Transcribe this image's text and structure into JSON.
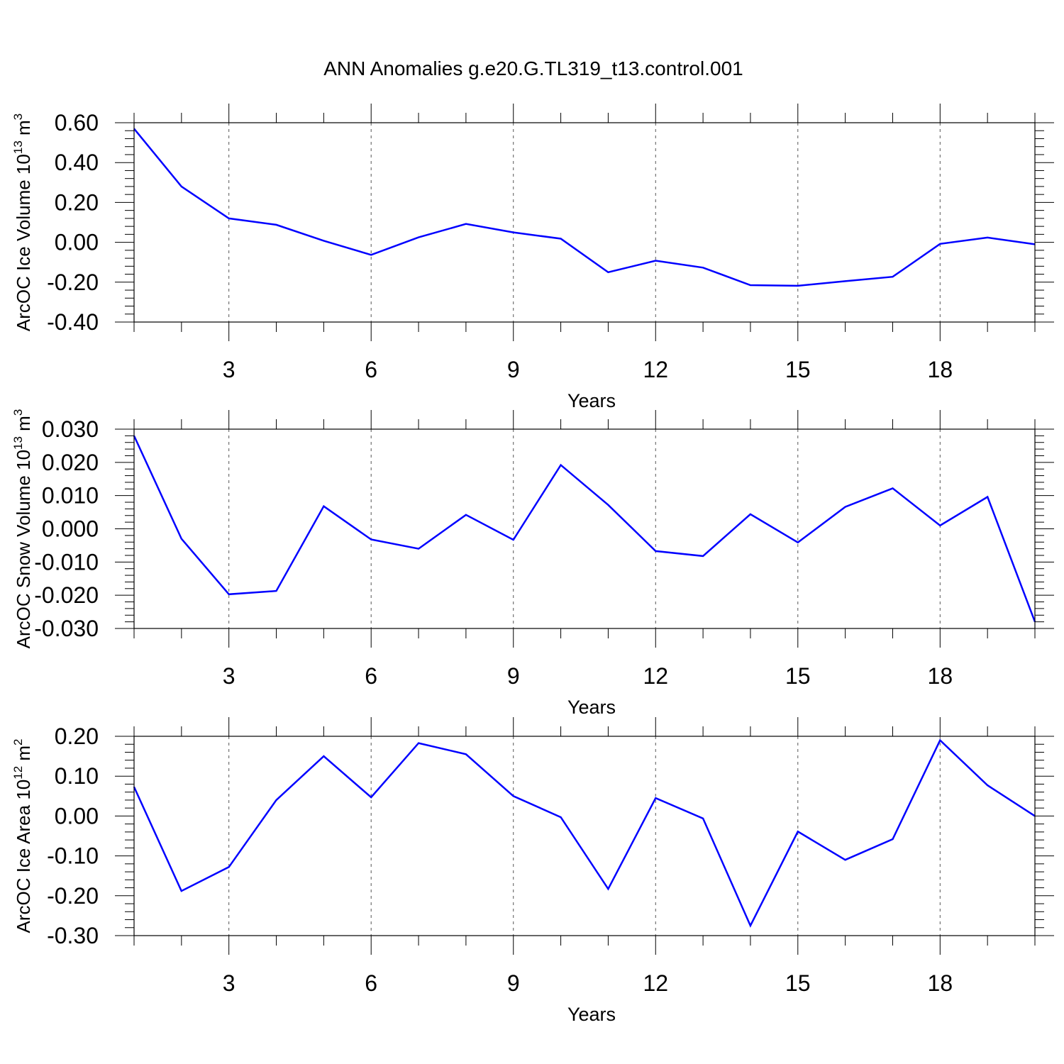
{
  "title": "ANN Anomalies g.e20.G.TL319_t13.control.001",
  "colors": {
    "line": "#0000ff",
    "axis": "#000000",
    "grid": "#555555"
  },
  "chart_data": [
    {
      "type": "line",
      "ylabel": {
        "text": "ArcOC Ice Volume 10",
        "sup": "13",
        "unit": "m",
        "unit_sup": "3"
      },
      "xlabel": "Years",
      "xlim": [
        1,
        20
      ],
      "ylim": [
        -0.4,
        0.6
      ],
      "x_ticks": [
        3,
        6,
        9,
        12,
        15,
        18
      ],
      "y_ticks": [
        -0.4,
        -0.2,
        0.0,
        0.2,
        0.4,
        0.6
      ],
      "y_tick_labels": [
        "-0.40",
        "-0.20",
        "0.00",
        "0.20",
        "0.40",
        "0.60"
      ],
      "grid": "vertical dashed at major x ticks",
      "series": [
        {
          "x": [
            1,
            2,
            3,
            4,
            5,
            6,
            7,
            8,
            9,
            10,
            11,
            12,
            13,
            14,
            15,
            16,
            17,
            18,
            19,
            20
          ],
          "values": [
            0.57,
            0.28,
            0.12,
            0.088,
            0.008,
            -0.063,
            0.025,
            0.092,
            0.05,
            0.018,
            -0.15,
            -0.092,
            -0.127,
            -0.215,
            -0.218,
            -0.195,
            -0.173,
            -0.008,
            0.024,
            -0.01
          ]
        }
      ]
    },
    {
      "type": "line",
      "ylabel": {
        "text": "ArcOC Snow Volume 10",
        "sup": "13",
        "unit": "m",
        "unit_sup": "3"
      },
      "xlabel": "Years",
      "xlim": [
        1,
        20
      ],
      "ylim": [
        -0.03,
        0.03
      ],
      "x_ticks": [
        3,
        6,
        9,
        12,
        15,
        18
      ],
      "y_ticks": [
        -0.03,
        -0.02,
        -0.01,
        0.0,
        0.01,
        0.02,
        0.03
      ],
      "y_tick_labels": [
        "-0.030",
        "-0.020",
        "-0.010",
        "0.000",
        "0.010",
        "0.020",
        "0.030"
      ],
      "grid": "vertical dashed at major x ticks",
      "series": [
        {
          "x": [
            1,
            2,
            3,
            4,
            5,
            6,
            7,
            8,
            9,
            10,
            11,
            12,
            13,
            14,
            15,
            16,
            17,
            18,
            19,
            20
          ],
          "values": [
            0.028,
            -0.003,
            -0.0197,
            -0.0187,
            0.0068,
            -0.0032,
            -0.006,
            0.0042,
            -0.0033,
            0.0192,
            0.0072,
            -0.0067,
            -0.0082,
            0.0044,
            -0.0041,
            0.0066,
            0.0122,
            0.001,
            0.0096,
            -0.028
          ]
        }
      ]
    },
    {
      "type": "line",
      "ylabel": {
        "text": "ArcOC Ice Area 10",
        "sup": "12",
        "unit": "m",
        "unit_sup": "2"
      },
      "xlabel": "Years",
      "xlim": [
        1,
        20
      ],
      "ylim": [
        -0.3,
        0.2
      ],
      "x_ticks": [
        3,
        6,
        9,
        12,
        15,
        18
      ],
      "y_ticks": [
        -0.3,
        -0.2,
        -0.1,
        0.0,
        0.1,
        0.2
      ],
      "y_tick_labels": [
        "-0.30",
        "-0.20",
        "-0.10",
        "0.00",
        "0.10",
        "0.20"
      ],
      "grid": "vertical dashed at major x ticks",
      "series": [
        {
          "x": [
            1,
            2,
            3,
            4,
            5,
            6,
            7,
            8,
            9,
            10,
            11,
            12,
            13,
            14,
            15,
            16,
            17,
            18,
            19,
            20
          ],
          "values": [
            0.073,
            -0.188,
            -0.128,
            0.04,
            0.15,
            0.047,
            0.183,
            0.155,
            0.05,
            -0.003,
            -0.183,
            0.045,
            -0.006,
            -0.275,
            -0.039,
            -0.11,
            -0.058,
            0.19,
            0.077,
            0.0
          ]
        }
      ]
    }
  ]
}
